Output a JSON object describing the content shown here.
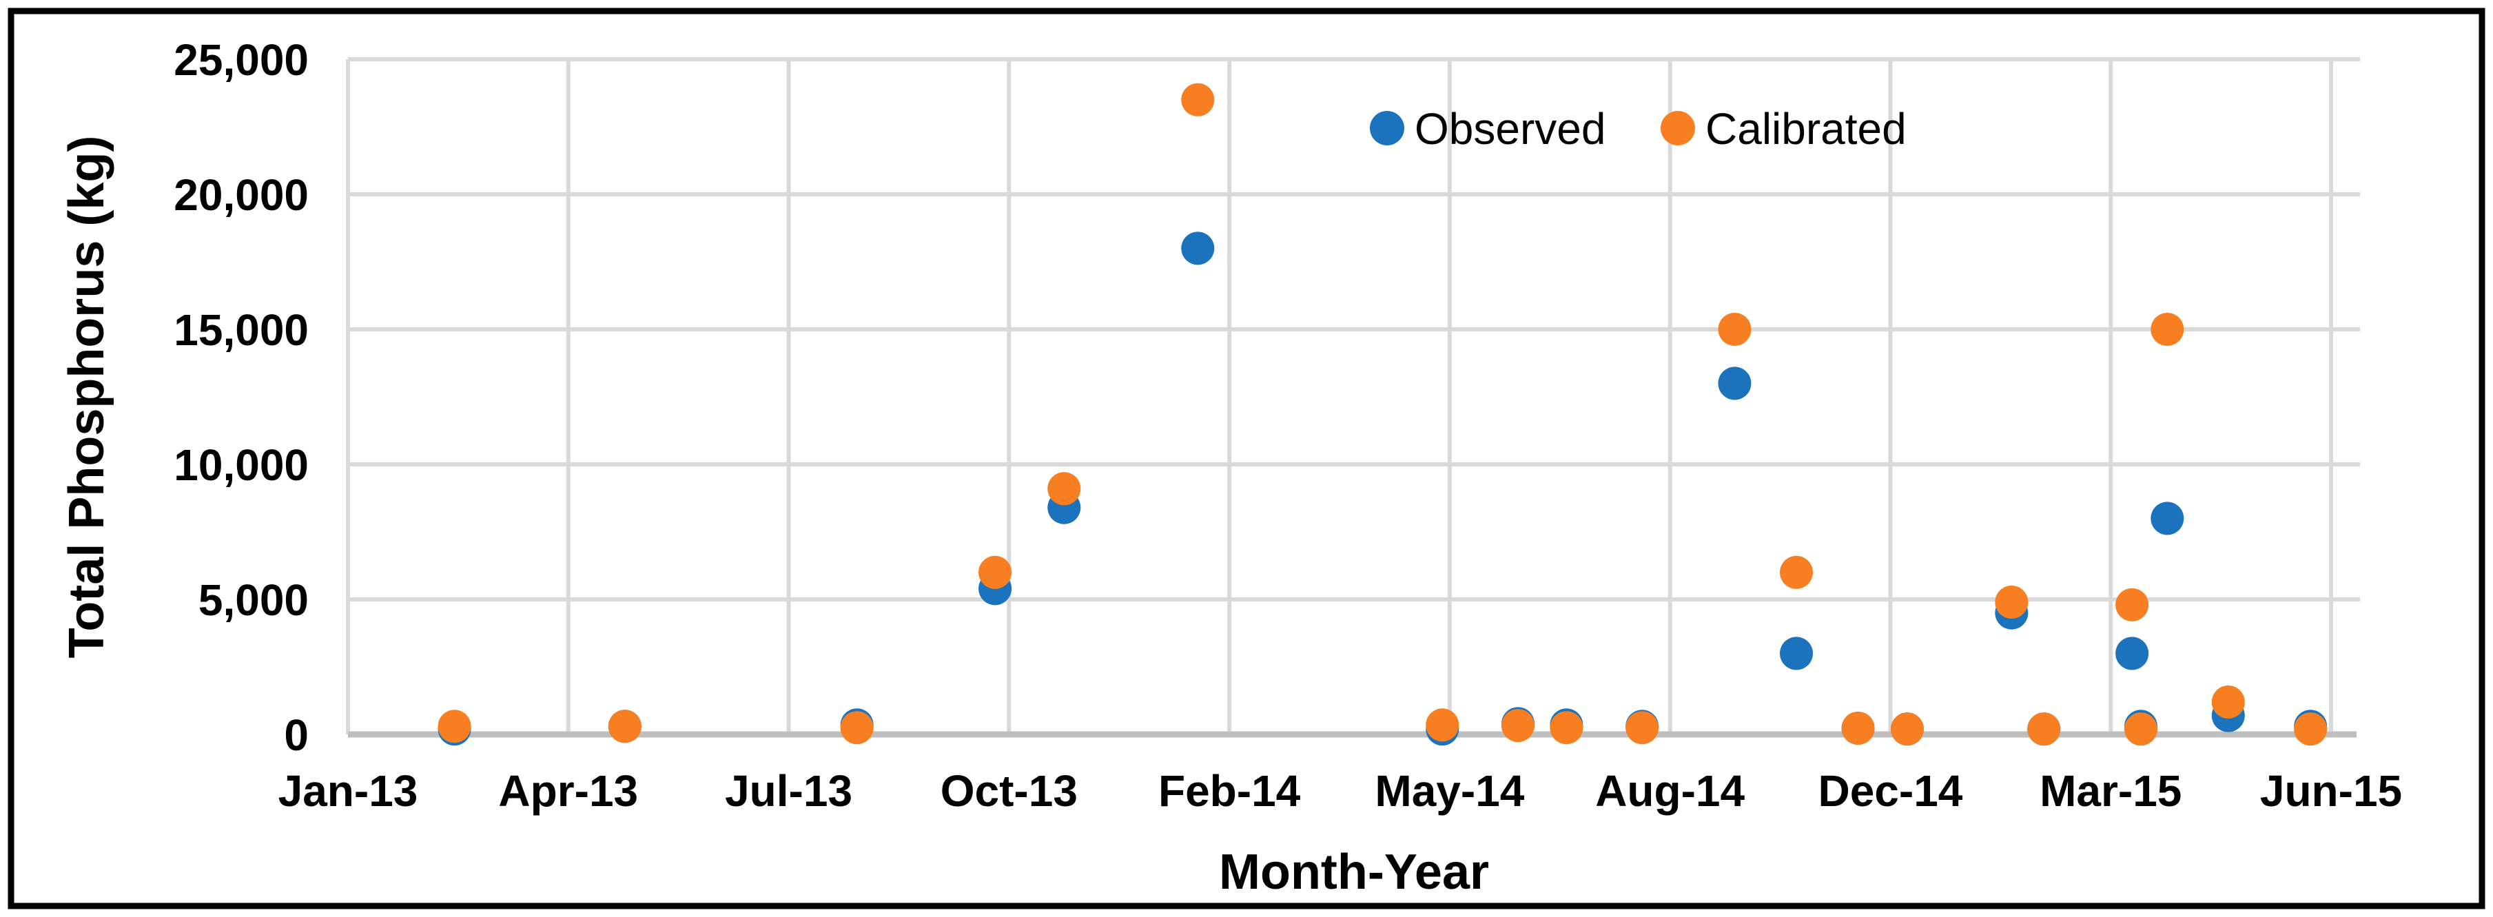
{
  "figure": {
    "background": "#FFFFFF",
    "border_color": "#000000"
  },
  "colors": {
    "gridline": "#D9D9D9",
    "axis_line": "#BFBFBF",
    "text": "#000000",
    "observed": "#1B73BE",
    "calibrated": "#F87E22"
  },
  "legend": {
    "observed_label": "Observed",
    "calibrated_label": "Calibrated"
  },
  "chart_data": {
    "type": "scatter",
    "title": "",
    "xlabel": "Month-Year",
    "ylabel": "Total Phosphorus (kg)",
    "grid": true,
    "legend_position": "top-center-inside",
    "x_axis": {
      "tick_labels": [
        "Jan-13",
        "Apr-13",
        "Jul-13",
        "Oct-13",
        "Feb-14",
        "May-14",
        "Aug-14",
        "Dec-14",
        "Mar-15",
        "Jun-15"
      ],
      "tick_positions_months": [
        0,
        3,
        6,
        9,
        12,
        15,
        18,
        21,
        24,
        27
      ],
      "range_months": [
        0,
        27.4
      ]
    },
    "y_axis": {
      "tick_labels": [
        "0",
        "5,000",
        "10,000",
        "15,000",
        "20,000",
        "25,000"
      ],
      "tick_values": [
        0,
        5000,
        10000,
        15000,
        20000,
        25000
      ],
      "range": [
        0,
        25000
      ]
    },
    "series": [
      {
        "name": "Observed",
        "color": "#1B73BE",
        "marker": "circle",
        "points": [
          {
            "x": 1.45,
            "y": 200
          },
          {
            "x": 3.77,
            "y": 300
          },
          {
            "x": 6.93,
            "y": 350
          },
          {
            "x": 8.81,
            "y": 5400
          },
          {
            "x": 9.75,
            "y": 8400
          },
          {
            "x": 11.57,
            "y": 18000
          },
          {
            "x": 14.9,
            "y": 200
          },
          {
            "x": 15.93,
            "y": 400
          },
          {
            "x": 16.59,
            "y": 350
          },
          {
            "x": 17.62,
            "y": 300
          },
          {
            "x": 18.88,
            "y": 13000
          },
          {
            "x": 19.72,
            "y": 3000
          },
          {
            "x": 20.56,
            "y": 230
          },
          {
            "x": 21.23,
            "y": 200
          },
          {
            "x": 22.65,
            "y": 4500
          },
          {
            "x": 23.09,
            "y": 200
          },
          {
            "x": 24.29,
            "y": 3000
          },
          {
            "x": 24.41,
            "y": 300
          },
          {
            "x": 24.77,
            "y": 8000
          },
          {
            "x": 25.6,
            "y": 700
          },
          {
            "x": 26.72,
            "y": 300
          }
        ]
      },
      {
        "name": "Calibrated",
        "color": "#F87E22",
        "marker": "circle",
        "points": [
          {
            "x": 1.45,
            "y": 300
          },
          {
            "x": 3.77,
            "y": 300
          },
          {
            "x": 6.93,
            "y": 250
          },
          {
            "x": 8.81,
            "y": 6000
          },
          {
            "x": 9.75,
            "y": 9100
          },
          {
            "x": 11.57,
            "y": 23500
          },
          {
            "x": 14.9,
            "y": 350
          },
          {
            "x": 15.93,
            "y": 330
          },
          {
            "x": 16.59,
            "y": 250
          },
          {
            "x": 17.62,
            "y": 250
          },
          {
            "x": 18.88,
            "y": 15000
          },
          {
            "x": 19.72,
            "y": 6000
          },
          {
            "x": 20.56,
            "y": 230
          },
          {
            "x": 21.23,
            "y": 200
          },
          {
            "x": 22.65,
            "y": 4900
          },
          {
            "x": 23.09,
            "y": 200
          },
          {
            "x": 24.29,
            "y": 4800
          },
          {
            "x": 24.41,
            "y": 200
          },
          {
            "x": 24.77,
            "y": 15000
          },
          {
            "x": 25.6,
            "y": 1200
          },
          {
            "x": 26.72,
            "y": 200
          }
        ]
      }
    ]
  }
}
